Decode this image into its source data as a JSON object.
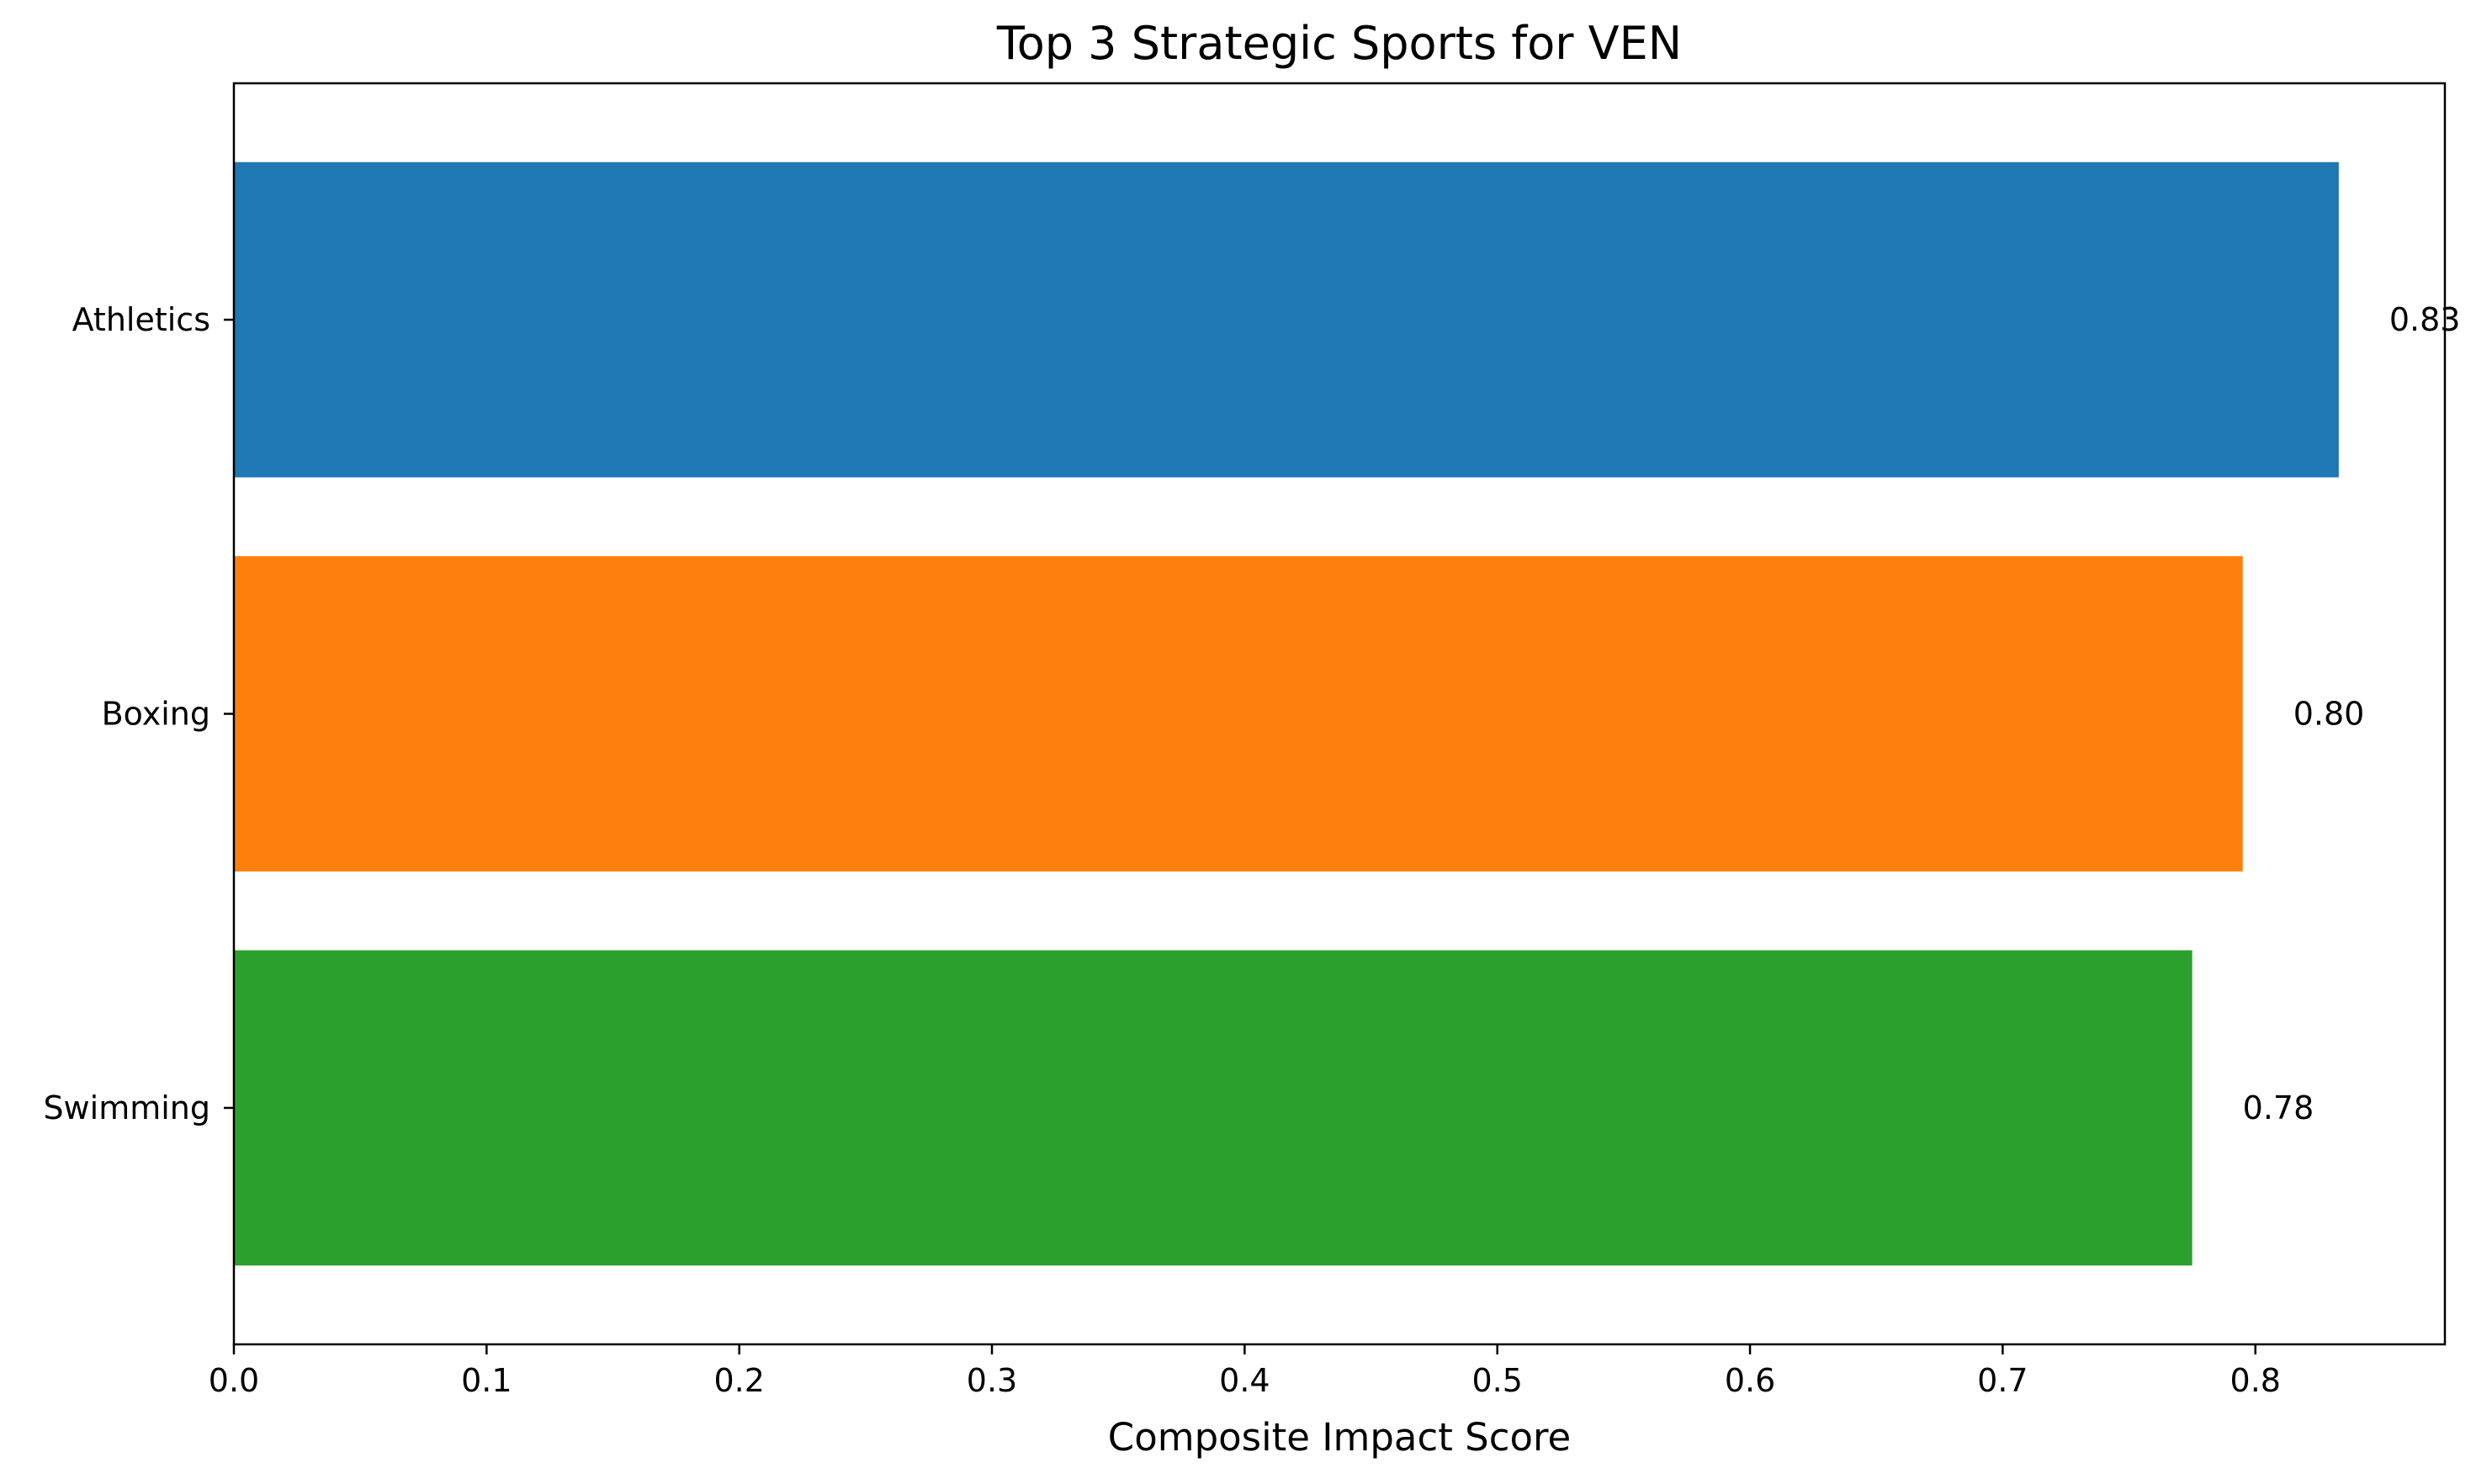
{
  "chart_data": {
    "type": "bar",
    "orientation": "horizontal",
    "title": "Top 3 Strategic Sports for VEN",
    "xlabel": "Composite Impact Score",
    "ylabel": "",
    "categories": [
      "Athletics",
      "Boxing",
      "Swimming"
    ],
    "values": [
      0.833,
      0.795,
      0.775
    ],
    "value_labels": [
      "0.83",
      "0.80",
      "0.78"
    ],
    "xlim": [
      0,
      0.875
    ],
    "xticks": [
      0.0,
      0.1,
      0.2,
      0.3,
      0.4,
      0.5,
      0.6,
      0.7,
      0.8
    ],
    "xtick_labels": [
      "0.0",
      "0.1",
      "0.2",
      "0.3",
      "0.4",
      "0.5",
      "0.6",
      "0.7",
      "0.8"
    ],
    "colors": [
      "#1f77b4",
      "#ff7f0e",
      "#2ca02c"
    ],
    "grid": false,
    "legend": false
  }
}
